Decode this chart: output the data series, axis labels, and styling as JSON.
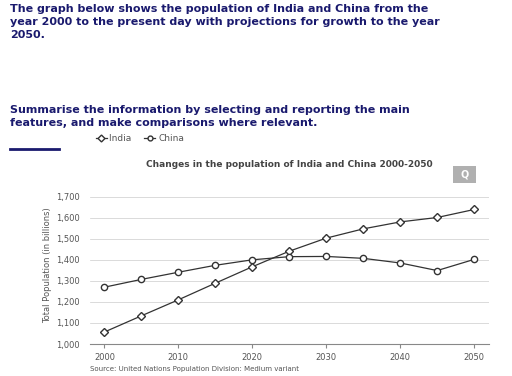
{
  "title": "Changes in the population of India and China 2000-2050",
  "source": "Source: United Nations Population Division: Medium variant",
  "ylabel": "Total Population (in billions)",
  "background_color": "#ffffff",
  "india": {
    "years": [
      2000,
      2005,
      2010,
      2015,
      2020,
      2025,
      2030,
      2035,
      2040,
      2045,
      2050
    ],
    "values": [
      1.057,
      1.134,
      1.21,
      1.289,
      1.367,
      1.441,
      1.503,
      1.547,
      1.58,
      1.601,
      1.639
    ],
    "label": "India",
    "marker": "D",
    "color": "#333333",
    "markersize": 4.5,
    "markerfacecolor": "white"
  },
  "china": {
    "years": [
      2000,
      2005,
      2010,
      2015,
      2020,
      2025,
      2030,
      2035,
      2040,
      2045,
      2050
    ],
    "values": [
      1.27,
      1.307,
      1.341,
      1.374,
      1.4,
      1.415,
      1.416,
      1.407,
      1.385,
      1.349,
      1.402
    ],
    "label": "China",
    "marker": "o",
    "color": "#333333",
    "markersize": 4.5,
    "markerfacecolor": "white"
  },
  "ylim": [
    1.0,
    1.75
  ],
  "yticks": [
    1.0,
    1.1,
    1.2,
    1.3,
    1.4,
    1.5,
    1.6,
    1.7
  ],
  "ytick_labels": [
    "1,000",
    "1,100",
    "1,200",
    "1,300",
    "1,400",
    "1,500",
    "1,600",
    "1,700"
  ],
  "xticks": [
    2000,
    2010,
    2020,
    2030,
    2040,
    2050
  ],
  "title_color": "#444444",
  "title_fontsize": 6.5,
  "tick_fontsize": 6,
  "legend_fontsize": 6.5,
  "axis_label_fontsize": 6,
  "text_color": "#555555",
  "heading1": "The graph below shows the population of India and China from the\nyear 2000 to the present day with projections for growth to the year\n2050.",
  "heading2": "Summarise the information by selecting and reporting the main\nfeatures, and make comparisons where relevant.",
  "heading_color": "#1a1a6e",
  "heading_fontsize": 8.0
}
